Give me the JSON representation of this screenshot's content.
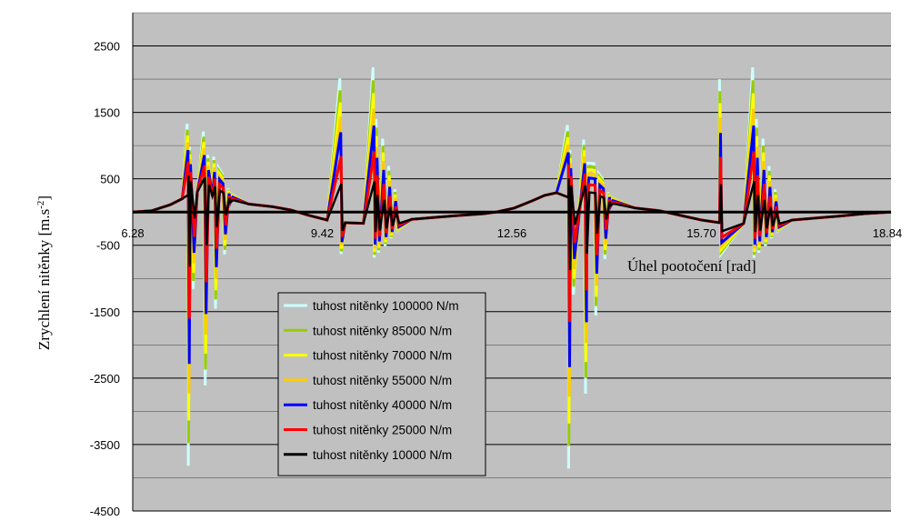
{
  "chart_data": {
    "type": "line",
    "title": "",
    "xlabel": "Úhel pootočení [rad]",
    "ylabel_main": "Zrychlení nitěnky [m.s",
    "ylabel_sup": "-2",
    "ylabel_end": "]",
    "xlim": [
      6.28,
      18.84
    ],
    "ylim": [
      -4500,
      3000
    ],
    "x_ticks": [
      "6.28",
      "9.42",
      "12.56",
      "15.70",
      "18.84"
    ],
    "x_tick_values": [
      6.28,
      9.42,
      12.56,
      15.7,
      18.84
    ],
    "y_ticks": [
      "2500",
      "1500",
      "500",
      "-500",
      "-1500",
      "-2500",
      "-3500",
      "-4500"
    ],
    "y_tick_values": [
      2500,
      1500,
      500,
      -500,
      -1500,
      -2500,
      -3500,
      -4500
    ],
    "grid": true,
    "legend_position": "bottom-center",
    "plot_background": "#c0c0c0",
    "series": [
      {
        "name": "tuhost nitěnky 100000 N/m",
        "color": "#ccffff",
        "scale": 1.2
      },
      {
        "name": "tuhost nitěnky 85000 N/m",
        "color": "#99cc00",
        "scale": 1.1
      },
      {
        "name": "tuhost nitěnky 70000 N/m",
        "color": "#ffff00",
        "scale": 1.0
      },
      {
        "name": "tuhost nitěnky 55000 N/m",
        "color": "#ffcc00",
        "scale": 0.88
      },
      {
        "name": "tuhost nitěnky 40000 N/m",
        "color": "#0000ff",
        "scale": 0.75
      },
      {
        "name": "tuhost nitěnky 25000 N/m",
        "color": "#ff0000",
        "scale": 0.55
      },
      {
        "name": "tuhost nitěnky 10000 N/m",
        "color": "#000000",
        "scale": 0.32
      }
    ],
    "baseline": [
      [
        6.28,
        0
      ],
      [
        6.6,
        20
      ],
      [
        6.9,
        110
      ],
      [
        7.1,
        200
      ],
      [
        7.2,
        260
      ],
      [
        7.35,
        300
      ],
      [
        7.6,
        240
      ],
      [
        7.9,
        150
      ],
      [
        8.2,
        120
      ],
      [
        8.6,
        80
      ],
      [
        8.9,
        30
      ],
      [
        9.2,
        -50
      ],
      [
        9.5,
        -120
      ],
      [
        9.8,
        -160
      ],
      [
        10.1,
        -170
      ],
      [
        10.5,
        -150
      ],
      [
        10.9,
        -110
      ],
      [
        11.3,
        -80
      ],
      [
        11.7,
        -50
      ],
      [
        12.1,
        -25
      ],
      [
        12.3,
        0
      ],
      [
        12.6,
        60
      ],
      [
        12.9,
        170
      ],
      [
        13.1,
        250
      ],
      [
        13.3,
        290
      ],
      [
        13.5,
        220
      ],
      [
        13.8,
        140
      ],
      [
        14.2,
        100
      ],
      [
        14.6,
        60
      ],
      [
        15.0,
        20
      ],
      [
        15.4,
        -60
      ],
      [
        15.7,
        -120
      ],
      [
        16.0,
        -160
      ],
      [
        16.4,
        -170
      ],
      [
        16.8,
        -150
      ],
      [
        17.2,
        -120
      ],
      [
        17.6,
        -90
      ],
      [
        18.0,
        -60
      ],
      [
        18.4,
        -25
      ],
      [
        18.84,
        0
      ]
    ],
    "spikes": [
      [
        7.18,
        900
      ],
      [
        7.2,
        -3400
      ],
      [
        7.22,
        600
      ],
      [
        7.28,
        -1200
      ],
      [
        7.45,
        780
      ],
      [
        7.48,
        -2400
      ],
      [
        7.52,
        500
      ],
      [
        7.62,
        500
      ],
      [
        7.65,
        -1400
      ],
      [
        7.7,
        380
      ],
      [
        7.76,
        320
      ],
      [
        7.8,
        -680
      ],
      [
        7.86,
        160
      ],
      [
        7.92,
        100
      ],
      [
        9.71,
        1800
      ],
      [
        9.73,
        -400
      ],
      [
        10.26,
        1950
      ],
      [
        10.28,
        -440
      ],
      [
        10.31,
        1300
      ],
      [
        10.35,
        -380
      ],
      [
        10.42,
        1050
      ],
      [
        10.46,
        -300
      ],
      [
        10.52,
        700
      ],
      [
        10.56,
        -210
      ],
      [
        10.62,
        400
      ],
      [
        10.67,
        -120
      ],
      [
        13.48,
        900
      ],
      [
        13.5,
        -3400
      ],
      [
        13.52,
        600
      ],
      [
        13.58,
        -1200
      ],
      [
        13.75,
        780
      ],
      [
        13.78,
        -2400
      ],
      [
        13.82,
        500
      ],
      [
        13.92,
        500
      ],
      [
        13.95,
        -1400
      ],
      [
        14.0,
        380
      ],
      [
        14.06,
        320
      ],
      [
        14.1,
        -680
      ],
      [
        14.16,
        160
      ],
      [
        14.22,
        100
      ],
      [
        16.0,
        1800
      ],
      [
        16.02,
        -400
      ],
      [
        16.55,
        1950
      ],
      [
        16.57,
        -440
      ],
      [
        16.61,
        1300
      ],
      [
        16.65,
        -380
      ],
      [
        16.72,
        1050
      ],
      [
        16.76,
        -300
      ],
      [
        16.82,
        700
      ],
      [
        16.86,
        -210
      ],
      [
        16.92,
        400
      ],
      [
        16.97,
        -120
      ]
    ]
  }
}
